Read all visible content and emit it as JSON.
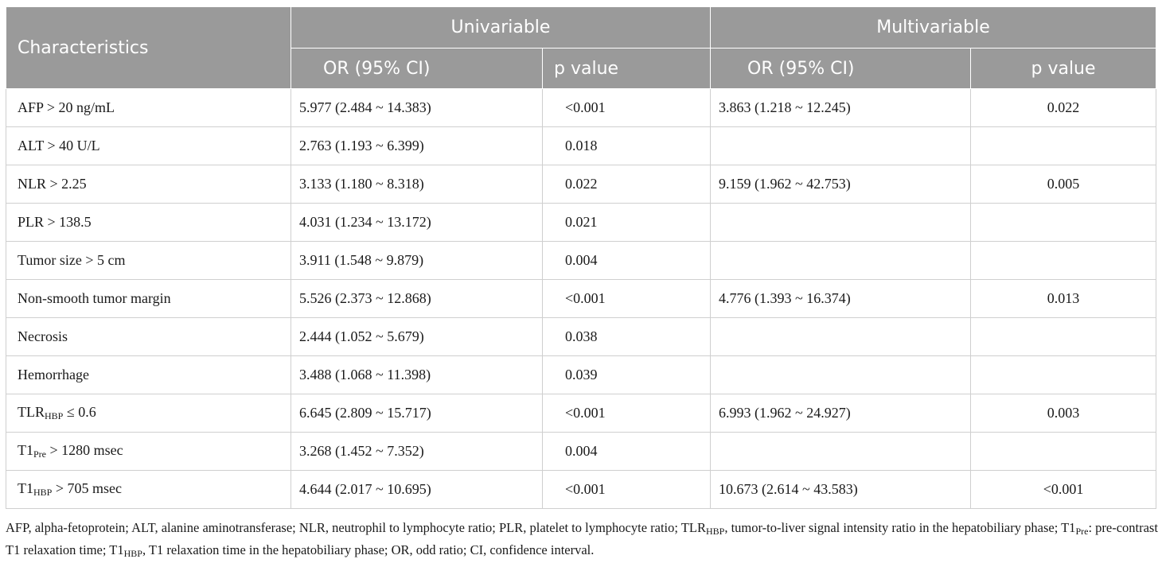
{
  "header": {
    "characteristics": "Characteristics",
    "univariable": "Univariable",
    "multivariable": "Multivariable",
    "or_ci": "OR (95% CI)",
    "p_value": "p value"
  },
  "rows": [
    {
      "label_main": "AFP > 20 ng/mL",
      "label_sub": "",
      "label_tail": "",
      "uni_or": "5.977 (2.484 ~ 14.383)",
      "uni_p": "<0.001",
      "multi_or": "3.863 (1.218 ~ 12.245)",
      "multi_p": "0.022"
    },
    {
      "label_main": "ALT > 40 U/L",
      "label_sub": "",
      "label_tail": "",
      "uni_or": "2.763 (1.193 ~ 6.399)",
      "uni_p": "0.018",
      "multi_or": "",
      "multi_p": ""
    },
    {
      "label_main": "NLR > 2.25",
      "label_sub": "",
      "label_tail": "",
      "uni_or": "3.133 (1.180 ~ 8.318)",
      "uni_p": "0.022",
      "multi_or": "9.159 (1.962 ~ 42.753)",
      "multi_p": "0.005"
    },
    {
      "label_main": "PLR > 138.5",
      "label_sub": "",
      "label_tail": "",
      "uni_or": "4.031 (1.234 ~ 13.172)",
      "uni_p": "0.021",
      "multi_or": "",
      "multi_p": ""
    },
    {
      "label_main": "Tumor size > 5 cm",
      "label_sub": "",
      "label_tail": "",
      "uni_or": "3.911 (1.548 ~ 9.879)",
      "uni_p": "0.004",
      "multi_or": "",
      "multi_p": ""
    },
    {
      "label_main": "Non-smooth tumor margin",
      "label_sub": "",
      "label_tail": "",
      "uni_or": "5.526 (2.373 ~ 12.868)",
      "uni_p": "<0.001",
      "multi_or": "4.776 (1.393 ~ 16.374)",
      "multi_p": "0.013"
    },
    {
      "label_main": "Necrosis",
      "label_sub": "",
      "label_tail": "",
      "uni_or": "2.444 (1.052 ~ 5.679)",
      "uni_p": "0.038",
      "multi_or": "",
      "multi_p": ""
    },
    {
      "label_main": "Hemorrhage",
      "label_sub": "",
      "label_tail": "",
      "uni_or": "3.488 (1.068 ~ 11.398)",
      "uni_p": "0.039",
      "multi_or": "",
      "multi_p": ""
    },
    {
      "label_main": "TLR",
      "label_sub": "HBP",
      "label_tail": " ≤ 0.6",
      "uni_or": "6.645 (2.809 ~ 15.717)",
      "uni_p": "<0.001",
      "multi_or": "6.993 (1.962 ~ 24.927)",
      "multi_p": "0.003"
    },
    {
      "label_main": "T1",
      "label_sub": "Pre",
      "label_tail": " > 1280 msec",
      "uni_or": "3.268 (1.452 ~ 7.352)",
      "uni_p": "0.004",
      "multi_or": "",
      "multi_p": ""
    },
    {
      "label_main": "T1",
      "label_sub": "HBP",
      "label_tail": " > 705 msec",
      "uni_or": "4.644 (2.017 ~ 10.695)",
      "uni_p": "<0.001",
      "multi_or": "10.673 (2.614 ~ 43.583)",
      "multi_p": "<0.001"
    }
  ],
  "footnote": {
    "t1": "AFP, alpha-fetoprotein; ALT, alanine aminotransferase; NLR, neutrophil to lymphocyte ratio; PLR, platelet to lymphocyte ratio; TLR",
    "s1": "HBP",
    "t2": ", tumor-to-liver signal intensity ratio in the hepatobiliary phase; T1",
    "s2": "Pre",
    "t3": ": pre-contrast T1 relaxation time; T1",
    "s3": "HBP",
    "t4": ", T1 relaxation time in the hepatobiliary phase; OR, odd ratio; CI, confidence interval."
  }
}
